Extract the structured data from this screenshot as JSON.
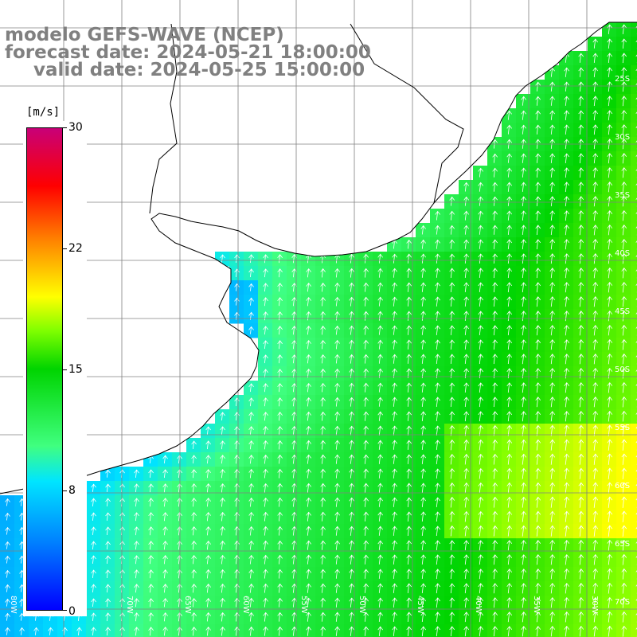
{
  "title": {
    "line1": "modelo GEFS-WAVE (NCEP)",
    "line2": "forecast date: 2024-05-21 18:00:00",
    "line3": "valid date: 2024-05-25 15:00:00"
  },
  "colorbar": {
    "unit": "[m/s]",
    "min": 0,
    "max": 30,
    "ticks": [
      "30",
      "22",
      "15",
      "8",
      "0"
    ],
    "colors": [
      "#0000ff",
      "#0080ff",
      "#00e5ff",
      "#00d400",
      "#ffff00",
      "#ff0000",
      "#c80078"
    ]
  },
  "map": {
    "land_color": "#ffffff",
    "coast_color": "#000000",
    "grid_color": "#808080",
    "arrow_color": "#ffffff",
    "lat_labels": [
      "25S",
      "30S",
      "35S",
      "40S",
      "45S",
      "50S",
      "55S",
      "60S",
      "65S",
      "70S"
    ],
    "lon_labels": [
      "80W",
      "75W",
      "70W",
      "65W",
      "60W",
      "55W",
      "50W",
      "45W",
      "40W",
      "35W",
      "30W"
    ]
  }
}
